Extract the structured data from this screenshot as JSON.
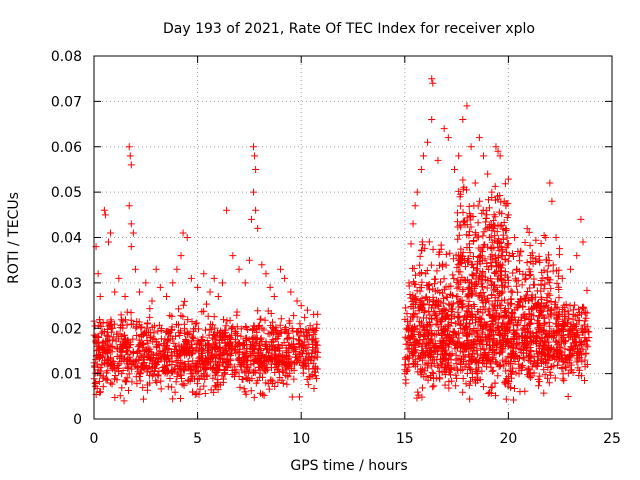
{
  "chart_data": {
    "type": "scatter",
    "title": "Day 193 of 2021, Rate Of TEC Index for receiver xplo",
    "xlabel": "GPS time / hours",
    "ylabel": "ROTI / TECUs",
    "xlim": [
      0,
      25
    ],
    "ylim": [
      0,
      0.08
    ],
    "xticks": [
      {
        "value": 0,
        "label": "0"
      },
      {
        "value": 5,
        "label": "5"
      },
      {
        "value": 10,
        "label": "10"
      },
      {
        "value": 15,
        "label": "15"
      },
      {
        "value": 20,
        "label": "20"
      },
      {
        "value": 25,
        "label": "25"
      }
    ],
    "yticks": [
      {
        "value": 0,
        "label": "0"
      },
      {
        "value": 0.01,
        "label": "0.01"
      },
      {
        "value": 0.02,
        "label": "0.02"
      },
      {
        "value": 0.03,
        "label": "0.03"
      },
      {
        "value": 0.04,
        "label": "0.04"
      },
      {
        "value": 0.05,
        "label": "0.05"
      },
      {
        "value": 0.06,
        "label": "0.06"
      },
      {
        "value": 0.07,
        "label": "0.07"
      },
      {
        "value": 0.08,
        "label": "0.08"
      }
    ],
    "grid": true,
    "marker": "plus",
    "series": [
      {
        "name": "ROTI",
        "color": "#ff0000",
        "points": [
          [
            0.1,
            0.038
          ],
          [
            0.2,
            0.032
          ],
          [
            0.3,
            0.027
          ],
          [
            0.5,
            0.046
          ],
          [
            0.55,
            0.045
          ],
          [
            0.7,
            0.039
          ],
          [
            0.8,
            0.041
          ],
          [
            1.0,
            0.028
          ],
          [
            1.2,
            0.031
          ],
          [
            1.5,
            0.027
          ],
          [
            1.7,
            0.06
          ],
          [
            1.75,
            0.058
          ],
          [
            1.8,
            0.056
          ],
          [
            1.7,
            0.047
          ],
          [
            1.8,
            0.043
          ],
          [
            1.9,
            0.041
          ],
          [
            1.8,
            0.038
          ],
          [
            2.0,
            0.033
          ],
          [
            2.2,
            0.028
          ],
          [
            2.5,
            0.03
          ],
          [
            2.8,
            0.026
          ],
          [
            3.0,
            0.033
          ],
          [
            3.2,
            0.029
          ],
          [
            3.5,
            0.027
          ],
          [
            3.8,
            0.03
          ],
          [
            4.0,
            0.033
          ],
          [
            4.2,
            0.036
          ],
          [
            4.3,
            0.041
          ],
          [
            4.5,
            0.04
          ],
          [
            4.7,
            0.031
          ],
          [
            5.0,
            0.029
          ],
          [
            5.3,
            0.032
          ],
          [
            5.6,
            0.028
          ],
          [
            5.8,
            0.031
          ],
          [
            6.0,
            0.027
          ],
          [
            6.2,
            0.03
          ],
          [
            6.4,
            0.046
          ],
          [
            6.7,
            0.036
          ],
          [
            7.0,
            0.033
          ],
          [
            7.3,
            0.03
          ],
          [
            7.5,
            0.035
          ],
          [
            7.6,
            0.044
          ],
          [
            7.7,
            0.06
          ],
          [
            7.75,
            0.058
          ],
          [
            7.8,
            0.055
          ],
          [
            7.7,
            0.05
          ],
          [
            7.8,
            0.046
          ],
          [
            7.9,
            0.042
          ],
          [
            8.1,
            0.034
          ],
          [
            8.3,
            0.032
          ],
          [
            8.5,
            0.029
          ],
          [
            8.7,
            0.027
          ],
          [
            9.0,
            0.033
          ],
          [
            9.2,
            0.031
          ],
          [
            9.5,
            0.028
          ],
          [
            9.8,
            0.026
          ],
          [
            10.0,
            0.025
          ],
          [
            10.3,
            0.024
          ],
          [
            10.6,
            0.023
          ],
          [
            15.2,
            0.03
          ],
          [
            15.4,
            0.043
          ],
          [
            15.5,
            0.047
          ],
          [
            15.6,
            0.05
          ],
          [
            15.8,
            0.055
          ],
          [
            15.9,
            0.058
          ],
          [
            16.1,
            0.061
          ],
          [
            16.3,
            0.075
          ],
          [
            16.35,
            0.074
          ],
          [
            16.3,
            0.066
          ],
          [
            16.6,
            0.057
          ],
          [
            16.9,
            0.064
          ],
          [
            17.1,
            0.062
          ],
          [
            17.4,
            0.055
          ],
          [
            17.6,
            0.058
          ],
          [
            17.8,
            0.066
          ],
          [
            18.0,
            0.069
          ],
          [
            18.2,
            0.06
          ],
          [
            18.4,
            0.052
          ],
          [
            18.6,
            0.062
          ],
          [
            18.8,
            0.058
          ],
          [
            19.0,
            0.054
          ],
          [
            19.2,
            0.05
          ],
          [
            19.4,
            0.06
          ],
          [
            19.5,
            0.059
          ],
          [
            19.6,
            0.058
          ],
          [
            19.8,
            0.048
          ],
          [
            20.0,
            0.045
          ],
          [
            20.3,
            0.04
          ],
          [
            20.6,
            0.037
          ],
          [
            21.0,
            0.033
          ],
          [
            21.5,
            0.035
          ],
          [
            21.8,
            0.04
          ],
          [
            22.0,
            0.052
          ],
          [
            22.1,
            0.048
          ],
          [
            22.3,
            0.04
          ],
          [
            22.6,
            0.031
          ],
          [
            23.0,
            0.033
          ],
          [
            23.3,
            0.036
          ],
          [
            23.5,
            0.044
          ],
          [
            23.6,
            0.039
          ]
        ],
        "clusters": [
          {
            "x_range": [
              0,
              10.8
            ],
            "y_mean": 0.0145,
            "y_spread": 0.004,
            "count": 1300
          },
          {
            "x_range": [
              15.0,
              23.9
            ],
            "y_mean": 0.017,
            "y_spread": 0.005,
            "count": 1200
          },
          {
            "x_range": [
              15.3,
              22.5
            ],
            "y_mean": 0.028,
            "y_spread": 0.006,
            "count": 450
          },
          {
            "x_range": [
              17.5,
              20.0
            ],
            "y_mean": 0.04,
            "y_spread": 0.006,
            "count": 180
          }
        ]
      }
    ]
  }
}
